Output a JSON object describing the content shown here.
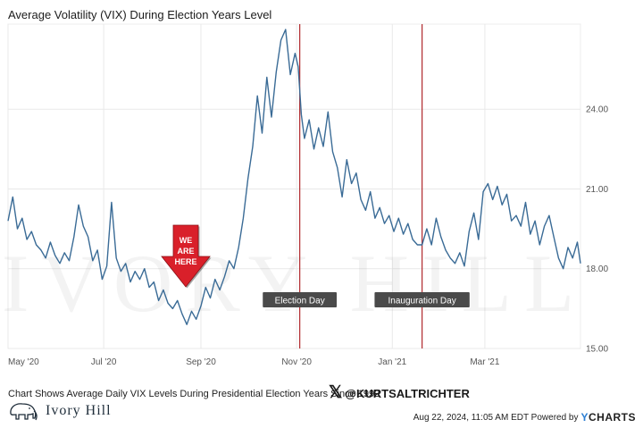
{
  "chart_data": {
    "type": "line",
    "title": "Average Volatility (VIX) During Election Years Level",
    "xlabel": "",
    "ylabel": "",
    "x_tick_labels": [
      "May '20",
      "Jul '20",
      "Sep '20",
      "Nov '20",
      "Jan '21",
      "Mar '21"
    ],
    "y_ticks": [
      15,
      18,
      21,
      24
    ],
    "y_tick_labels": [
      "15.00",
      "18.00",
      "21.00",
      "24.00"
    ],
    "ylim": [
      15,
      27.2
    ],
    "x_range": [
      "2020-05-01",
      "2021-05-01"
    ],
    "grid": true,
    "y_axis_side": "right",
    "series": [
      {
        "points": [
          [
            "2020-05-01",
            19.8
          ],
          [
            "2020-05-04",
            20.7
          ],
          [
            "2020-05-07",
            19.5
          ],
          [
            "2020-05-10",
            19.9
          ],
          [
            "2020-05-13",
            19.1
          ],
          [
            "2020-05-16",
            19.4
          ],
          [
            "2020-05-19",
            18.9
          ],
          [
            "2020-05-22",
            18.7
          ],
          [
            "2020-05-25",
            18.4
          ],
          [
            "2020-05-28",
            19.0
          ],
          [
            "2020-05-31",
            18.5
          ],
          [
            "2020-06-03",
            18.2
          ],
          [
            "2020-06-06",
            18.6
          ],
          [
            "2020-06-09",
            18.3
          ],
          [
            "2020-06-12",
            19.2
          ],
          [
            "2020-06-15",
            20.4
          ],
          [
            "2020-06-18",
            19.6
          ],
          [
            "2020-06-21",
            19.2
          ],
          [
            "2020-06-24",
            18.3
          ],
          [
            "2020-06-27",
            18.7
          ],
          [
            "2020-06-30",
            17.6
          ],
          [
            "2020-07-03",
            18.1
          ],
          [
            "2020-07-06",
            20.5
          ],
          [
            "2020-07-09",
            18.4
          ],
          [
            "2020-07-12",
            17.9
          ],
          [
            "2020-07-15",
            18.2
          ],
          [
            "2020-07-18",
            17.5
          ],
          [
            "2020-07-21",
            17.9
          ],
          [
            "2020-07-24",
            17.6
          ],
          [
            "2020-07-27",
            18.0
          ],
          [
            "2020-07-30",
            17.3
          ],
          [
            "2020-08-02",
            17.5
          ],
          [
            "2020-08-05",
            16.8
          ],
          [
            "2020-08-08",
            17.2
          ],
          [
            "2020-08-11",
            16.7
          ],
          [
            "2020-08-14",
            16.5
          ],
          [
            "2020-08-17",
            16.8
          ],
          [
            "2020-08-20",
            16.3
          ],
          [
            "2020-08-23",
            15.9
          ],
          [
            "2020-08-26",
            16.4
          ],
          [
            "2020-08-29",
            16.1
          ],
          [
            "2020-09-01",
            16.6
          ],
          [
            "2020-09-04",
            17.3
          ],
          [
            "2020-09-07",
            16.9
          ],
          [
            "2020-09-10",
            17.6
          ],
          [
            "2020-09-13",
            17.2
          ],
          [
            "2020-09-16",
            17.7
          ],
          [
            "2020-09-19",
            18.3
          ],
          [
            "2020-09-22",
            18.0
          ],
          [
            "2020-09-25",
            18.8
          ],
          [
            "2020-09-28",
            19.9
          ],
          [
            "2020-10-01",
            21.4
          ],
          [
            "2020-10-04",
            22.6
          ],
          [
            "2020-10-07",
            24.5
          ],
          [
            "2020-10-10",
            23.1
          ],
          [
            "2020-10-13",
            25.2
          ],
          [
            "2020-10-16",
            23.7
          ],
          [
            "2020-10-19",
            25.4
          ],
          [
            "2020-10-22",
            26.6
          ],
          [
            "2020-10-25",
            27.0
          ],
          [
            "2020-10-28",
            25.3
          ],
          [
            "2020-10-31",
            26.1
          ],
          [
            "2020-11-02",
            25.6
          ],
          [
            "2020-11-04",
            23.8
          ],
          [
            "2020-11-06",
            22.9
          ],
          [
            "2020-11-09",
            23.6
          ],
          [
            "2020-11-12",
            22.5
          ],
          [
            "2020-11-15",
            23.3
          ],
          [
            "2020-11-18",
            22.6
          ],
          [
            "2020-11-21",
            23.9
          ],
          [
            "2020-11-24",
            22.4
          ],
          [
            "2020-11-27",
            21.8
          ],
          [
            "2020-11-30",
            20.7
          ],
          [
            "2020-12-03",
            22.1
          ],
          [
            "2020-12-06",
            21.2
          ],
          [
            "2020-12-09",
            21.6
          ],
          [
            "2020-12-12",
            20.6
          ],
          [
            "2020-12-15",
            20.2
          ],
          [
            "2020-12-18",
            20.9
          ],
          [
            "2020-12-21",
            19.9
          ],
          [
            "2020-12-24",
            20.3
          ],
          [
            "2020-12-27",
            19.7
          ],
          [
            "2020-12-30",
            20.0
          ],
          [
            "2021-01-02",
            19.4
          ],
          [
            "2021-01-05",
            19.9
          ],
          [
            "2021-01-08",
            19.3
          ],
          [
            "2021-01-11",
            19.7
          ],
          [
            "2021-01-14",
            19.1
          ],
          [
            "2021-01-17",
            18.9
          ],
          [
            "2021-01-20",
            18.9
          ],
          [
            "2021-01-23",
            19.5
          ],
          [
            "2021-01-26",
            18.9
          ],
          [
            "2021-01-29",
            19.9
          ],
          [
            "2021-02-01",
            19.2
          ],
          [
            "2021-02-04",
            18.7
          ],
          [
            "2021-02-07",
            18.4
          ],
          [
            "2021-02-10",
            18.2
          ],
          [
            "2021-02-13",
            18.6
          ],
          [
            "2021-02-16",
            18.1
          ],
          [
            "2021-02-19",
            19.4
          ],
          [
            "2021-02-22",
            20.1
          ],
          [
            "2021-02-25",
            19.1
          ],
          [
            "2021-02-28",
            20.9
          ],
          [
            "2021-03-03",
            21.2
          ],
          [
            "2021-03-06",
            20.6
          ],
          [
            "2021-03-09",
            21.1
          ],
          [
            "2021-03-12",
            20.4
          ],
          [
            "2021-03-15",
            20.8
          ],
          [
            "2021-03-18",
            19.8
          ],
          [
            "2021-03-21",
            20.0
          ],
          [
            "2021-03-24",
            19.6
          ],
          [
            "2021-03-27",
            20.5
          ],
          [
            "2021-03-30",
            19.3
          ],
          [
            "2021-04-02",
            19.8
          ],
          [
            "2021-04-05",
            18.9
          ],
          [
            "2021-04-08",
            19.6
          ],
          [
            "2021-04-11",
            20.0
          ],
          [
            "2021-04-14",
            19.2
          ],
          [
            "2021-04-17",
            18.4
          ],
          [
            "2021-04-20",
            18.0
          ],
          [
            "2021-04-23",
            18.8
          ],
          [
            "2021-04-26",
            18.4
          ],
          [
            "2021-04-29",
            19.0
          ],
          [
            "2021-05-01",
            18.2
          ]
        ],
        "color": "#3a6b96"
      }
    ],
    "annotations": [
      {
        "type": "vline",
        "x": "2020-11-03",
        "label": "Election Day",
        "color": "#b0282c"
      },
      {
        "type": "vline",
        "x": "2021-01-20",
        "label": "Inauguration Day",
        "color": "#b0282c"
      },
      {
        "type": "arrow-callout",
        "x": "2020-08-23",
        "label_lines": [
          "WE",
          "ARE",
          "HERE"
        ],
        "color": "#d9202a"
      }
    ],
    "watermark": {
      "text": "IVORY HILL"
    }
  },
  "footer": {
    "note": "Chart Shows Average Daily VIX Levels During Presidential Election Years Since 1992",
    "twitter_handle": "@KURTSALTRICHTER",
    "brand": "Ivory Hill",
    "timestamp": "Aug 22, 2024, 11:05 AM EDT Powered by",
    "powered_by_y": "Y",
    "powered_by_rest": "CHARTS"
  }
}
